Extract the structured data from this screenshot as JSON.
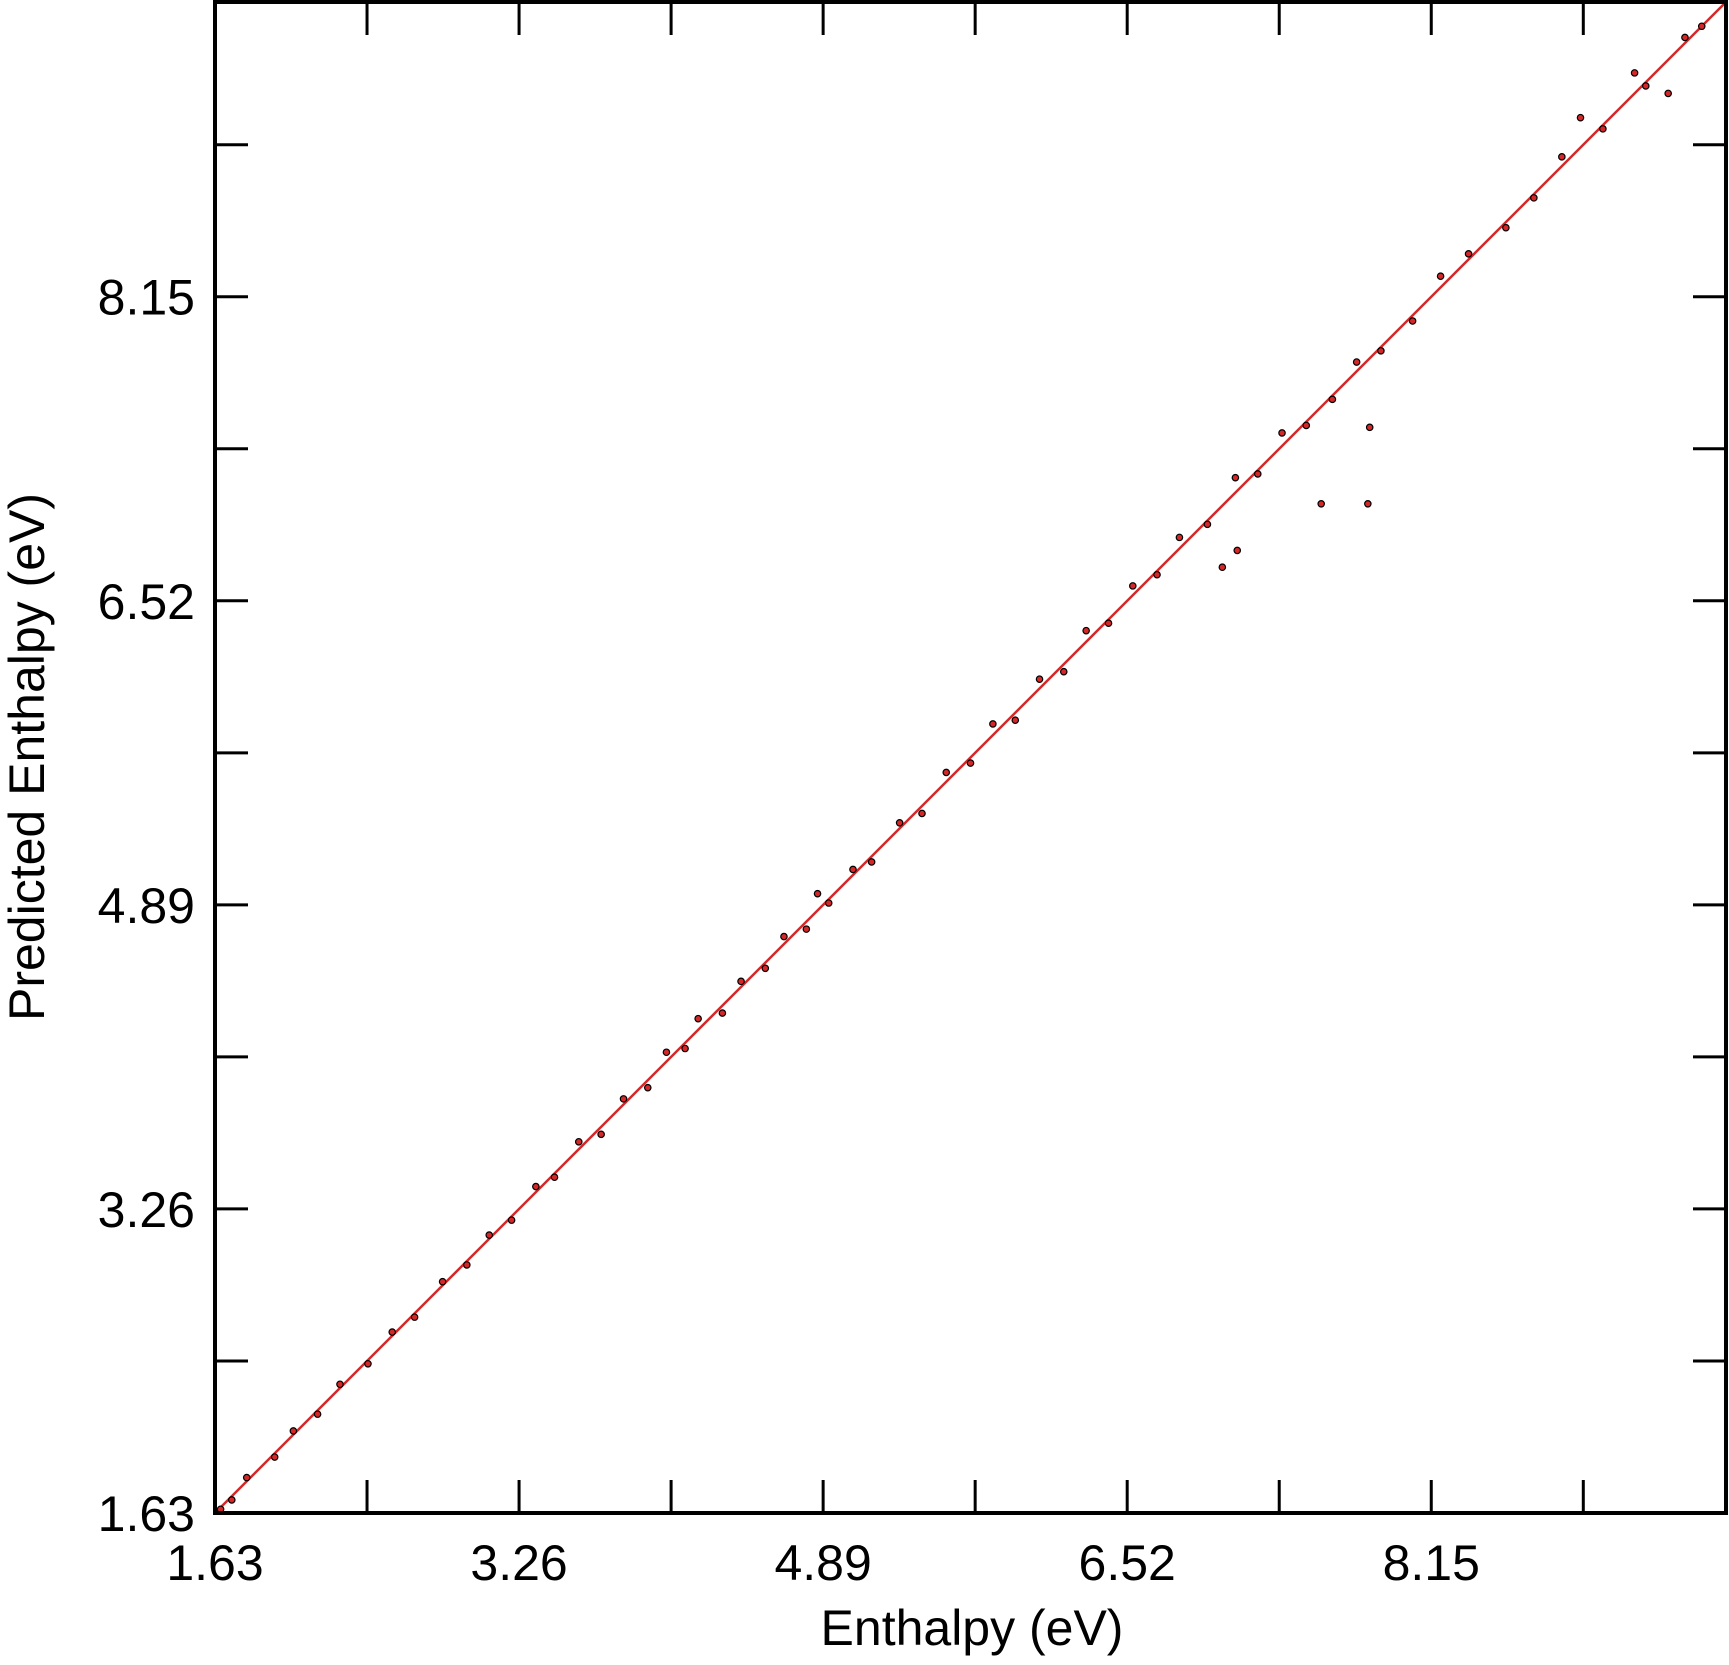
{
  "chart_data": {
    "type": "scatter",
    "x_label": "Enthalpy (eV)",
    "y_label": "Predicted Enthalpy (eV)",
    "xlim": [
      1.63,
      9.73
    ],
    "ylim": [
      1.63,
      9.73
    ],
    "xticks": [
      1.63,
      3.26,
      4.89,
      6.52,
      8.15
    ],
    "yticks": [
      1.63,
      3.26,
      4.89,
      6.52,
      8.15
    ],
    "minor_xticks": [
      2.445,
      4.075,
      5.705,
      7.335,
      8.965
    ],
    "minor_yticks": [
      2.445,
      4.075,
      5.705,
      7.335,
      8.965
    ],
    "grid": false,
    "series": [
      {
        "color": "#d62728",
        "x": [
          1.66,
          1.72,
          1.8,
          1.95,
          2.05,
          2.18,
          2.3,
          2.45,
          2.58,
          2.7,
          2.85,
          2.98,
          3.1,
          3.22,
          3.35,
          3.45,
          3.58,
          3.7,
          3.82,
          3.95,
          4.05,
          4.15,
          4.22,
          4.35,
          4.45,
          4.58,
          4.68,
          4.8,
          4.86,
          4.92,
          5.05,
          5.15,
          5.3,
          5.42,
          5.55,
          5.68,
          5.8,
          5.92,
          6.05,
          6.18,
          6.3,
          6.42,
          6.55,
          6.68,
          6.8,
          6.95,
          7.1,
          7.22,
          7.35,
          7.48,
          7.62,
          7.75,
          7.88,
          8.05,
          8.2,
          8.35,
          8.55,
          8.7,
          8.85,
          9.3,
          9.6,
          7.56,
          7.81,
          7.82,
          7.03,
          7.11,
          9.51,
          9.24,
          9.42,
          8.95,
          9.07
        ],
        "values": [
          1.65,
          1.7,
          1.82,
          1.93,
          2.07,
          2.16,
          2.32,
          2.43,
          2.6,
          2.68,
          2.87,
          2.96,
          3.12,
          3.2,
          3.38,
          3.43,
          3.62,
          3.66,
          3.85,
          3.91,
          4.1,
          4.12,
          4.28,
          4.31,
          4.48,
          4.55,
          4.72,
          4.76,
          4.95,
          4.9,
          5.08,
          5.12,
          5.33,
          5.38,
          5.6,
          5.65,
          5.86,
          5.88,
          6.1,
          6.14,
          6.36,
          6.4,
          6.6,
          6.66,
          6.86,
          6.93,
          7.18,
          7.2,
          7.42,
          7.46,
          7.6,
          7.8,
          7.86,
          8.02,
          8.26,
          8.38,
          8.52,
          8.68,
          8.9,
          9.28,
          9.6,
          7.04,
          7.04,
          7.45,
          6.7,
          6.79,
          9.54,
          9.35,
          9.24,
          9.11,
          9.05
        ]
      }
    ],
    "fit_line": {
      "color": "#d62728",
      "x": [
        1.63,
        9.73
      ],
      "y": [
        1.63,
        9.73
      ]
    }
  }
}
